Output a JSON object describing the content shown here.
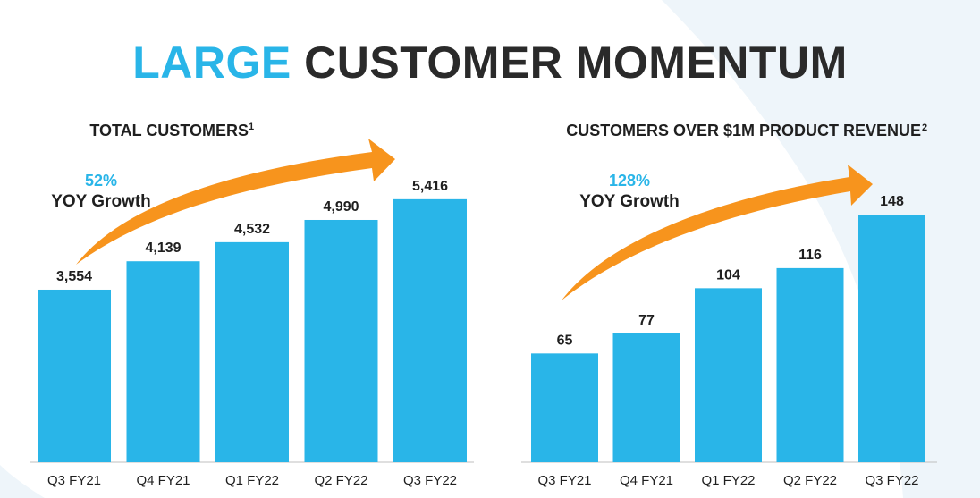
{
  "slide": {
    "title_accent": "LARGE",
    "title_rest": "CUSTOMER MOMENTUM"
  },
  "colors": {
    "bar": "#29b5e8",
    "accent": "#29b5e8",
    "arrow": "#f7941d",
    "text": "#1f1f1f",
    "axis": "#bfbfbf",
    "swoosh": "#eef5fa"
  },
  "chart_data": [
    {
      "type": "bar",
      "title": "TOTAL CUSTOMERS",
      "title_sup": "1",
      "growth_pct": "52%",
      "growth_label": "YOY Growth",
      "categories": [
        "Q3 FY21",
        "Q4 FY21",
        "Q1 FY22",
        "Q2 FY22",
        "Q3 FY22"
      ],
      "values": [
        3554,
        4139,
        4532,
        4990,
        5416
      ],
      "value_labels": [
        "3,554",
        "4,139",
        "4,532",
        "4,990",
        "5,416"
      ],
      "ylim": [
        0,
        5800
      ]
    },
    {
      "type": "bar",
      "title": "CUSTOMERS OVER $1M PRODUCT REVENUE",
      "title_sup": "2",
      "growth_pct": "128%",
      "growth_label": "YOY Growth",
      "categories": [
        "Q3 FY21",
        "Q4 FY21",
        "Q1 FY22",
        "Q2 FY22",
        "Q3 FY22"
      ],
      "values": [
        65,
        77,
        104,
        116,
        148
      ],
      "value_labels": [
        "65",
        "77",
        "104",
        "116",
        "148"
      ],
      "ylim": [
        0,
        148
      ]
    }
  ]
}
